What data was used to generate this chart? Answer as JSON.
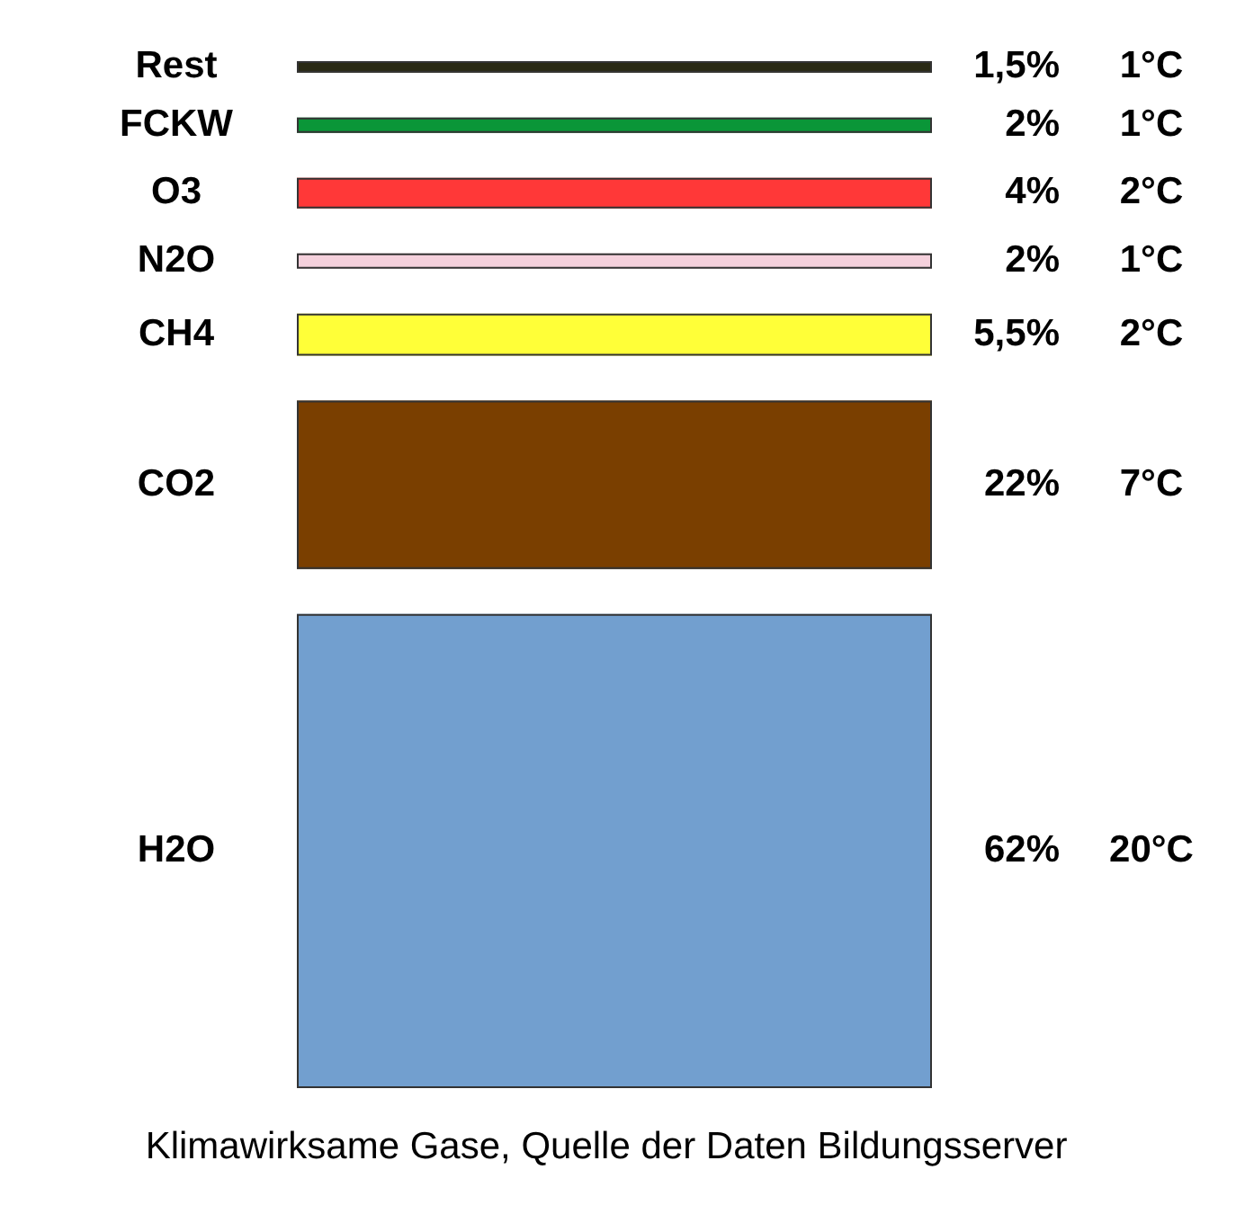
{
  "chart_data": {
    "type": "other",
    "categories": [
      "Rest",
      "FCKW",
      "O3",
      "N2O",
      "CH4",
      "CO2",
      "H2O"
    ],
    "series": [
      {
        "values": [
          1.5,
          2,
          4,
          2,
          5.5,
          22,
          62
        ],
        "value_labels": [
          "1,5%",
          "2%",
          "4%",
          "2%",
          "5,5%",
          "22%",
          "62%"
        ],
        "colors": [
          "#2a2a14",
          "#0a9638",
          "#ff3838",
          "#f5d0dc",
          "#ffff38",
          "#7a3f00",
          "#729fcf"
        ]
      },
      {
        "values": [
          1,
          1,
          2,
          1,
          2,
          7,
          20
        ],
        "value_labels": [
          "1°C",
          "1°C",
          "2°C",
          "1°C",
          "2°C",
          "7°C",
          "20°C"
        ]
      }
    ],
    "annotations": [
      "Klimawirksame Gase, Quelle der Daten Bildungsserver"
    ]
  }
}
